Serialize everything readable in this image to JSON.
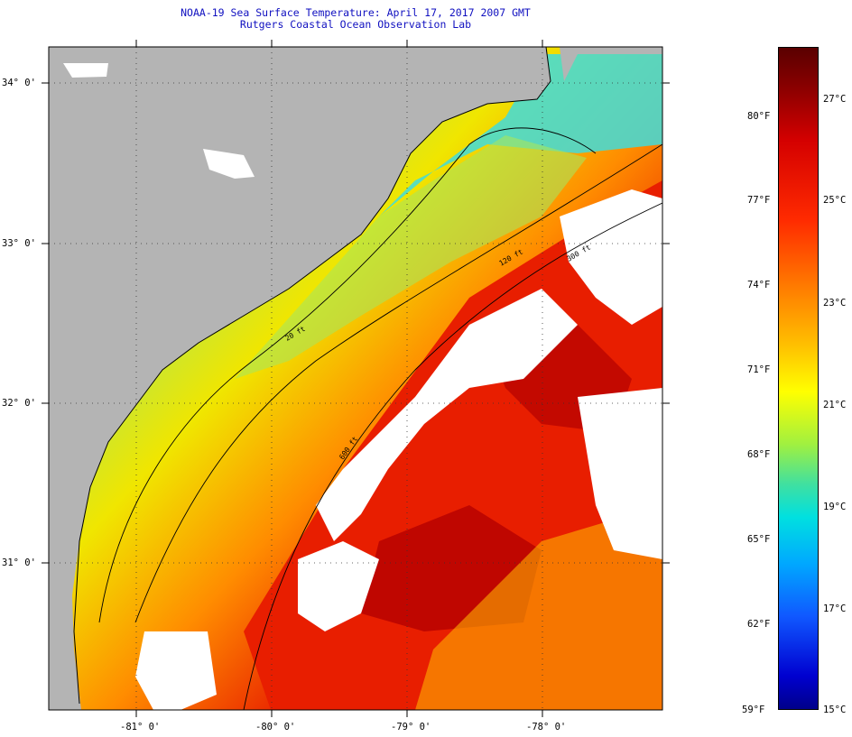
{
  "title": {
    "line1": "NOAA-19 Sea Surface Temperature:  April 17, 2017 2007 GMT",
    "line2": "Rutgers Coastal Ocean Observation Lab"
  },
  "latitude_labels": [
    "34° 0'",
    "33° 0'",
    "32° 0'",
    "31° 0'"
  ],
  "longitude_labels": [
    "-81° 0'",
    "-80° 0'",
    "-79° 0'",
    "-78° 0'"
  ],
  "isobath_labels": [
    "20 ft",
    "120 ft",
    "300 ft",
    "600 ft"
  ],
  "colorbar": {
    "fahrenheit": [
      "80°F",
      "77°F",
      "74°F",
      "71°F",
      "68°F",
      "65°F",
      "62°F",
      "59°F"
    ],
    "celsius": [
      "27°C",
      "25°C",
      "23°C",
      "21°C",
      "19°C",
      "17°C",
      "15°C"
    ]
  },
  "colors": {
    "land": "#b4b4b4",
    "cloud": "#ffffff",
    "warm": "#e81e00",
    "hot": "#b40000",
    "orange": "#ff8c00",
    "yellow": "#f0e600",
    "green": "#a8e65a",
    "cyan": "#40dcdc",
    "title": "#1010c0"
  }
}
